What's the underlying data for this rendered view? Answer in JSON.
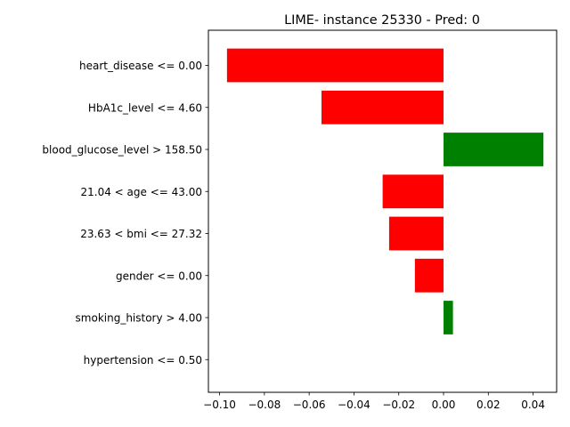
{
  "chart_data": {
    "type": "bar",
    "orientation": "horizontal",
    "title": "LIME- instance 25330 - Pred: 0",
    "xlabel": "",
    "ylabel": "",
    "xlim": [
      -0.105,
      0.0505
    ],
    "xticks": [
      -0.1,
      -0.08,
      -0.06,
      -0.04,
      -0.02,
      0.0,
      0.02,
      0.04
    ],
    "xtick_labels": [
      "−0.10",
      "−0.08",
      "−0.06",
      "−0.04",
      "−0.02",
      "0.00",
      "0.02",
      "0.04"
    ],
    "grid": false,
    "categories": [
      "heart_disease <= 0.00",
      "HbA1c_level <= 4.60",
      "blood_glucose_level > 158.50",
      "21.04 < age <= 43.00",
      "23.63 < bmi <= 27.32",
      "gender <= 0.00",
      "smoking_history > 4.00",
      "hypertension <= 0.50"
    ],
    "values": [
      -0.0967,
      -0.0545,
      0.0446,
      -0.0272,
      -0.0243,
      -0.0128,
      0.0042,
      0.0
    ],
    "positive_color": "#008000",
    "negative_color": "#ff0000"
  }
}
